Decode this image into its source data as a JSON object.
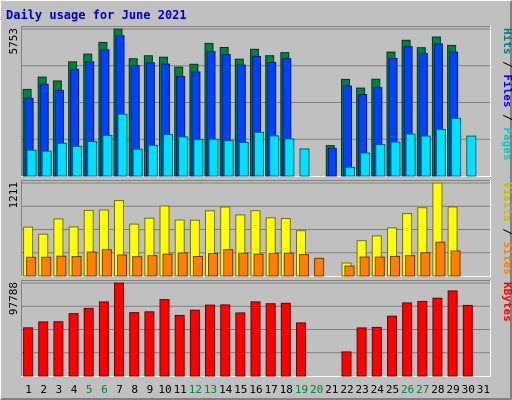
{
  "chart_data": {
    "type": "bar",
    "title": "Daily usage for June 2021",
    "days": [
      "1",
      "2",
      "3",
      "4",
      "5",
      "6",
      "7",
      "8",
      "9",
      "10",
      "11",
      "12",
      "13",
      "14",
      "15",
      "16",
      "17",
      "18",
      "19",
      "20",
      "21",
      "22",
      "23",
      "24",
      "25",
      "26",
      "27",
      "28",
      "29",
      "30",
      "31"
    ],
    "weekend_days": [
      "5",
      "6",
      "12",
      "13",
      "19",
      "20",
      "26",
      "27"
    ],
    "panels": [
      {
        "max_label": "5753",
        "ymax": 5753,
        "side_labels": [
          {
            "text": "Hits",
            "color": "#008080"
          },
          {
            "text": " / ",
            "color": "#000000"
          },
          {
            "text": "Files",
            "color": "#0000ff"
          },
          {
            "text": " / ",
            "color": "#000000"
          },
          {
            "text": "Pages",
            "color": "#00cccc"
          }
        ],
        "series": [
          {
            "name": "Hits",
            "color": "#008040",
            "values": [
              3390,
              3870,
              3720,
              4470,
              4770,
              5230,
              5753,
              4590,
              4710,
              4650,
              4260,
              4370,
              5190,
              5030,
              4570,
              4960,
              4710,
              4830,
              0,
              0,
              1190,
              3780,
              3440,
              3790,
              4850,
              5310,
              5020,
              5440,
              5110,
              null,
              null
            ]
          },
          {
            "name": "Files",
            "color": "#0040ff",
            "values": [
              3040,
              3590,
              3350,
              4170,
              4470,
              4940,
              5490,
              4320,
              4430,
              4380,
              3890,
              4070,
              4870,
              4750,
              4340,
              4680,
              4440,
              4590,
              0,
              0,
              1080,
              3520,
              3190,
              3460,
              4600,
              5060,
              4800,
              5170,
              4850,
              null,
              null
            ]
          },
          {
            "name": "Pages",
            "color": "#00e0ff",
            "values": [
              1010,
              970,
              1280,
              1160,
              1350,
              1590,
              2420,
              1050,
              1200,
              1620,
              1530,
              1430,
              1440,
              1380,
              1310,
              1710,
              1570,
              1450,
              1060,
              0,
              0,
              340,
              900,
              1230,
              1330,
              1640,
              1560,
              1820,
              2260,
              1560,
              null
            ]
          }
        ]
      },
      {
        "max_label": "1211",
        "ymax": 1211,
        "side_labels": [
          {
            "text": "Visits",
            "color": "#c0c000"
          },
          {
            "text": " / ",
            "color": "#000000"
          },
          {
            "text": "Sites",
            "color": "#ff8000"
          }
        ],
        "series": [
          {
            "name": "Visits",
            "color": "#ffff00",
            "values": [
              637,
              544,
              743,
              640,
              854,
              860,
              982,
              676,
              753,
              911,
              729,
              726,
              849,
              898,
              795,
              850,
              758,
              748,
              590,
              0,
              0,
              169,
              460,
              522,
              626,
              812,
              890,
              1211,
              899,
              0,
              null
            ]
          },
          {
            "name": "Sites",
            "color": "#ff8000",
            "values": [
              243,
              243,
              258,
              253,
              313,
              342,
              274,
              251,
              266,
              285,
              301,
              254,
              293,
              342,
              297,
              284,
              294,
              297,
              279,
              231,
              0,
              129,
              246,
              246,
              255,
              265,
              303,
              440,
              326,
              0,
              null
            ]
          }
        ]
      },
      {
        "max_label": "97788",
        "ymax": 97788,
        "side_labels": [
          {
            "text": "KBytes",
            "color": "#ff0000"
          }
        ],
        "series": [
          {
            "name": "KBytes",
            "color": "#ff0000",
            "values": [
              50700,
              56900,
              57100,
              65600,
              71100,
              77900,
              97788,
              66700,
              67500,
              80300,
              63700,
              69200,
              74500,
              74800,
              66300,
              78000,
              76000,
              76400,
              55800,
              0,
              0,
              25300,
              50600,
              51100,
              62900,
              76900,
              78400,
              81800,
              89500,
              74200,
              null
            ]
          }
        ]
      }
    ]
  }
}
